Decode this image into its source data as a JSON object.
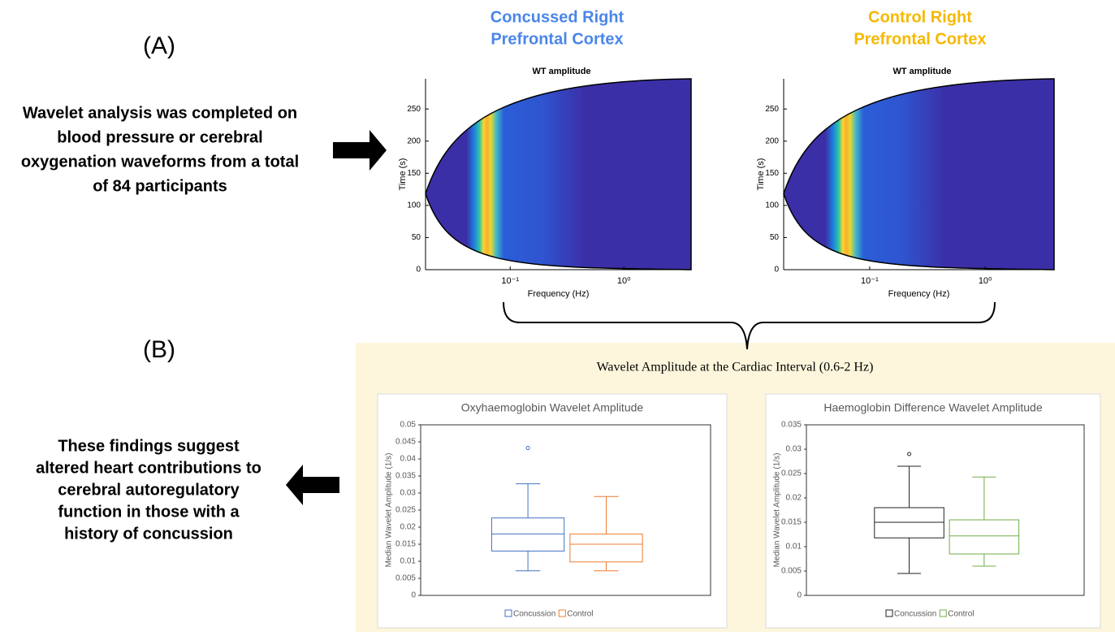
{
  "text": {
    "label_a": "(A)",
    "label_b": "(B)",
    "summary_a": [
      "Wavelet analysis was completed on",
      "blood pressure or cerebral",
      "oxygenation waveforms from a total",
      "of 84 participants"
    ],
    "summary_b": [
      "These findings suggest",
      "altered heart contributions to",
      "cerebral autoregulatory",
      "function in those with a",
      "history of concussion"
    ],
    "panel_title": "Wavelet Amplitude at the Cardiac Interval (0.6-2 Hz)"
  },
  "chart_data": [
    {
      "type": "wavelet",
      "heading": [
        "Concussed Right",
        "Prefrontal Cortex"
      ],
      "heading_color": "#4a86e8",
      "title": "WT amplitude",
      "xlabel": "Frequency (Hz)",
      "ylabel": "Time (s)",
      "log_x": true,
      "xlim": [
        0.018,
        3.9
      ],
      "xticks": [
        {
          "value": 0.1,
          "label": "10⁻¹"
        },
        {
          "value": 1,
          "label": "10⁰"
        }
      ],
      "ylim": [
        0,
        297
      ],
      "yticks": [
        0,
        50,
        100,
        150,
        200,
        250
      ]
    },
    {
      "type": "wavelet",
      "heading": [
        "Control Right",
        "Prefrontal Cortex"
      ],
      "heading_color": "#f6b800",
      "title": "WT amplitude",
      "xlabel": "Frequency (Hz)",
      "ylabel": "Time (s)",
      "log_x": true,
      "xlim": [
        0.018,
        3.95
      ],
      "xticks": [
        {
          "value": 0.1,
          "label": "10⁻¹"
        },
        {
          "value": 1,
          "label": "10⁰"
        }
      ],
      "ylim": [
        0,
        297
      ],
      "yticks": [
        0,
        50,
        100,
        150,
        200,
        250
      ]
    },
    {
      "type": "box",
      "title": "Oxyhaemoglobin Wavelet Amplitude",
      "ylabel": "Median Wavelet Amplitude (1/s)",
      "ylim": [
        0,
        0.05
      ],
      "yticks": [
        0,
        0.005,
        0.01,
        0.015,
        0.02,
        0.025,
        0.03,
        0.035,
        0.04,
        0.045,
        0.05
      ],
      "series": [
        {
          "name": "Concussion",
          "color": "#4472c4",
          "min": 0.0072,
          "q1": 0.013,
          "median": 0.018,
          "q3": 0.0227,
          "max": 0.0327,
          "outliers": [
            0.0432
          ]
        },
        {
          "name": "Control",
          "color": "#ed7d31",
          "min": 0.0072,
          "q1": 0.0098,
          "median": 0.015,
          "q3": 0.018,
          "max": 0.029,
          "outliers": []
        }
      ]
    },
    {
      "type": "box",
      "title": "Haemoglobin Difference Wavelet Amplitude",
      "ylabel": "Median Wavelet Amplitude (1/s)",
      "ylim": [
        0,
        0.035
      ],
      "yticks": [
        0,
        0.005,
        0.01,
        0.015,
        0.02,
        0.025,
        0.03,
        0.035
      ],
      "series": [
        {
          "name": "Concussion",
          "color": "#222222",
          "min": 0.0045,
          "q1": 0.0118,
          "median": 0.015,
          "q3": 0.018,
          "max": 0.0265,
          "outliers": [
            0.029
          ]
        },
        {
          "name": "Control",
          "color": "#70ad47",
          "min": 0.006,
          "q1": 0.0085,
          "median": 0.0122,
          "q3": 0.0155,
          "max": 0.0243,
          "outliers": []
        }
      ]
    }
  ]
}
